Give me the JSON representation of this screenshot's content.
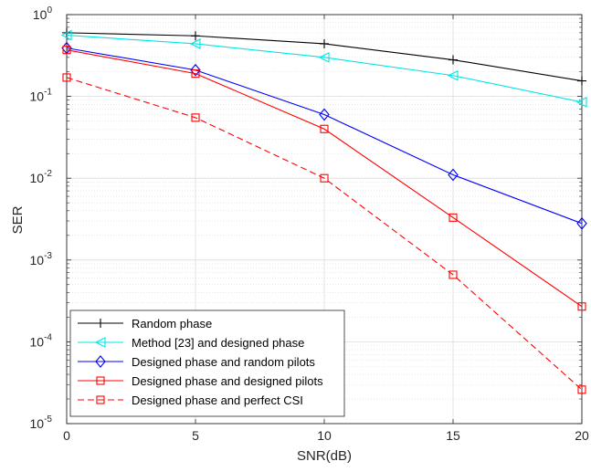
{
  "chart_data": {
    "type": "line",
    "title": "",
    "xlabel": "SNR(dB)",
    "ylabel": "SER",
    "x": [
      0,
      5,
      10,
      15,
      20
    ],
    "xlim": [
      0,
      20
    ],
    "ylim": [
      1e-05,
      1
    ],
    "yscale": "log",
    "grid": true,
    "legend_position": "bottom-left",
    "x_ticks": [
      "0",
      "5",
      "10",
      "15",
      "20"
    ],
    "y_ticks": [
      {
        "base": "10",
        "exp": "-5"
      },
      {
        "base": "10",
        "exp": "-4"
      },
      {
        "base": "10",
        "exp": "-3"
      },
      {
        "base": "10",
        "exp": "-2"
      },
      {
        "base": "10",
        "exp": "-1"
      },
      {
        "base": "10",
        "exp": "0"
      }
    ],
    "series": [
      {
        "name": "Random phase",
        "color": "#000000",
        "marker": "plus",
        "dash": "solid",
        "values": [
          0.6,
          0.55,
          0.44,
          0.28,
          0.155
        ]
      },
      {
        "name": "Method [23] and designed phase",
        "color": "#00e6e6",
        "marker": "triangle-left",
        "dash": "solid",
        "values": [
          0.56,
          0.44,
          0.3,
          0.18,
          0.085
        ]
      },
      {
        "name": "Designed phase and random pilots",
        "color": "#0000ff",
        "marker": "diamond",
        "dash": "solid",
        "values": [
          0.39,
          0.21,
          0.06,
          0.011,
          0.0028
        ]
      },
      {
        "name": "Designed phase and designed pilots",
        "color": "#ff0000",
        "marker": "square",
        "dash": "solid",
        "values": [
          0.37,
          0.19,
          0.04,
          0.0033,
          0.00027
        ]
      },
      {
        "name": "Designed phase and perfect CSI",
        "color": "#ff0000",
        "marker": "square",
        "dash": "dashed",
        "values": [
          0.17,
          0.055,
          0.01,
          0.00066,
          2.6e-05
        ]
      }
    ]
  }
}
